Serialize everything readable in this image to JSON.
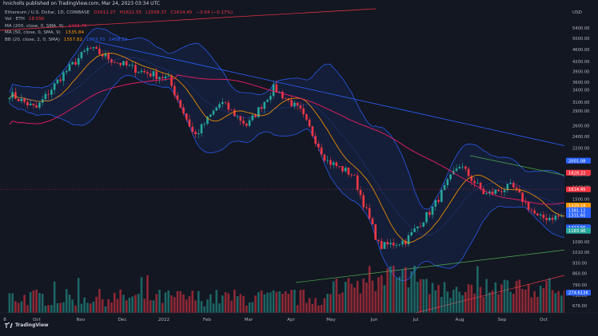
{
  "header": {
    "published": "hnicholls published on TradingView.com, Mar 24, 2023 03:34 UTC"
  },
  "legend": {
    "symbol": "Ethereum / U.S. Dollar, 1D, COINBASE",
    "ohlc": {
      "o": "O1611.27",
      "h": "H1622.55",
      "l": "L1558.37",
      "c": "C1614.45",
      "chg": "−3.04 (−0.17%)"
    },
    "vol_label": "Vol · ETH",
    "vol_value": "18.55K",
    "ma200_label": "MA (200, close, 0, SMA, 9)",
    "ma200_value": "1433.79",
    "ma50_label": "MA (50, close, 0, SMA, 9)",
    "ma50_value": "1535.84",
    "bb_label": "BB (20, close, 2, 0, SMA)",
    "bb_values": [
      "1557.82",
      "1663.73",
      "1458.12"
    ]
  },
  "price_axis": {
    "currency": "USD",
    "ticks": [
      "5400.00",
      "5000.00",
      "4600.00",
      "4200.00",
      "3900.00",
      "3600.00",
      "3400.00",
      "3100.00",
      "2900.00",
      "2600.00",
      "2400.00",
      "2200.00",
      "2000.00",
      "1800.00",
      "1640.00",
      "1500.00",
      "1360.00",
      "1230.00",
      "1090.00",
      "1010.00",
      "930.00",
      "860.00",
      "790.00",
      "730.00",
      "676.00"
    ],
    "badges": [
      {
        "text": "1614.45",
        "price": 1614.45,
        "color": "#f23645"
      },
      {
        "text": "2001.08",
        "price": 2001.08,
        "color": "#2962ff"
      },
      {
        "text": "1828.22",
        "price": 1828.22,
        "color": "#f23645"
      },
      {
        "text": "1429.18",
        "price": 1429.18,
        "color": "#ff9800"
      },
      {
        "text": "1381.12",
        "price": 1381.12,
        "color": "#2962ff"
      },
      {
        "text": "1331.60",
        "price": 1331.6,
        "color": "#2962ff"
      },
      {
        "text": "1213.56",
        "price": 1213.56,
        "color": "#2962ff"
      },
      {
        "text": "1183.96",
        "price": 1183.96,
        "color": "#26a69a"
      },
      {
        "text": "274.613K",
        "price": 745,
        "color": "#2962ff"
      }
    ]
  },
  "time_axis": {
    "labels": [
      "8",
      "Oct",
      "Nov",
      "Dec",
      "2022",
      "Feb",
      "Mar",
      "Apr",
      "May",
      "Jun",
      "Jul",
      "Aug",
      "Sep",
      "Oct"
    ]
  },
  "footer": {
    "brand": "TradingView"
  },
  "colors": {
    "up": "#26a69a",
    "down": "#f23645",
    "ma200": "#e91e63",
    "ma50": "#ff9800",
    "bb": "#2962ff",
    "trend_red": "#f23645",
    "trend_blue": "#2962ff",
    "trend_green": "#4caf50"
  },
  "chart_data": {
    "type": "candlestick",
    "title": "Ethereum / U.S. Dollar, 1D, COINBASE",
    "x_labels": [
      "8",
      "Oct",
      "Nov",
      "Dec",
      "2022",
      "Feb",
      "Mar",
      "Apr",
      "May",
      "Jun",
      "Jul",
      "Aug",
      "Sep",
      "Oct"
    ],
    "y_scale": "log",
    "ylim": [
      640,
      6000
    ],
    "ylabel": "USD",
    "close_path_key_points": [
      {
        "x": "Sep 2021",
        "close": 3300
      },
      {
        "x": "early Oct 2021",
        "close": 2950
      },
      {
        "x": "mid Oct 2021",
        "close": 3800
      },
      {
        "x": "Nov 2021",
        "close": 4650
      },
      {
        "x": "early Dec 2021",
        "close": 4200
      },
      {
        "x": "mid Dec 2021",
        "close": 3900
      },
      {
        "x": "end Dec 2021",
        "close": 3700
      },
      {
        "x": "late Jan 2022",
        "close": 2400
      },
      {
        "x": "early Feb 2022",
        "close": 3100
      },
      {
        "x": "late Feb 2022",
        "close": 2600
      },
      {
        "x": "early Apr 2022",
        "close": 3450
      },
      {
        "x": "late Apr 2022",
        "close": 2900
      },
      {
        "x": "mid May 2022",
        "close": 2000
      },
      {
        "x": "end May 2022",
        "close": 1800
      },
      {
        "x": "mid Jun 2022",
        "close": 1050
      },
      {
        "x": "end Jun 2022",
        "close": 1100
      },
      {
        "x": "mid Jul 2022",
        "close": 1400
      },
      {
        "x": "mid Aug 2022",
        "close": 1950
      },
      {
        "x": "end Aug 2022",
        "close": 1550
      },
      {
        "x": "mid Sep 2022",
        "close": 1650
      },
      {
        "x": "late Sep 2022",
        "close": 1300
      },
      {
        "x": "Oct 2022",
        "close": 1320
      }
    ],
    "volume_label": "Vol · ETH",
    "grid": false
  }
}
